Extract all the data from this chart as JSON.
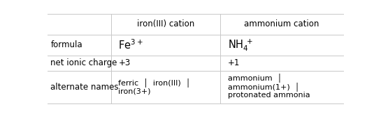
{
  "figsize": [
    5.45,
    1.67
  ],
  "dpi": 100,
  "background_color": "#ffffff",
  "grid_color": "#c8c8c8",
  "text_color": "#000000",
  "col_bounds": [
    0.0,
    0.215,
    0.585,
    1.0
  ],
  "row_tops": [
    1.0,
    0.77,
    0.535,
    0.365,
    0.0
  ],
  "headers": [
    "",
    "iron(III) cation",
    "ammonium cation"
  ],
  "row_labels": [
    "formula",
    "net ionic charge",
    "alternate names"
  ],
  "formula_col1": "$\\mathregular{Fe^{3+}}$",
  "formula_col2_main": "$\\mathregular{NH_4}$",
  "formula_col2_sup": "$\\mathregular{^+}$",
  "charge_col1": "+3",
  "charge_col2": "+1",
  "alt_col1_line1": "ferric  │  iron(III)  │",
  "alt_col1_line2": "iron(3+)",
  "alt_col2_lines": [
    "ammonium  │",
    "ammonium(1+)  │",
    "protonated ammonia"
  ],
  "font_family": "DejaVu Sans",
  "font_size": 8.5,
  "header_font_size": 8.5,
  "formula_font_size": 10.5,
  "alt_font_size": 8.0
}
